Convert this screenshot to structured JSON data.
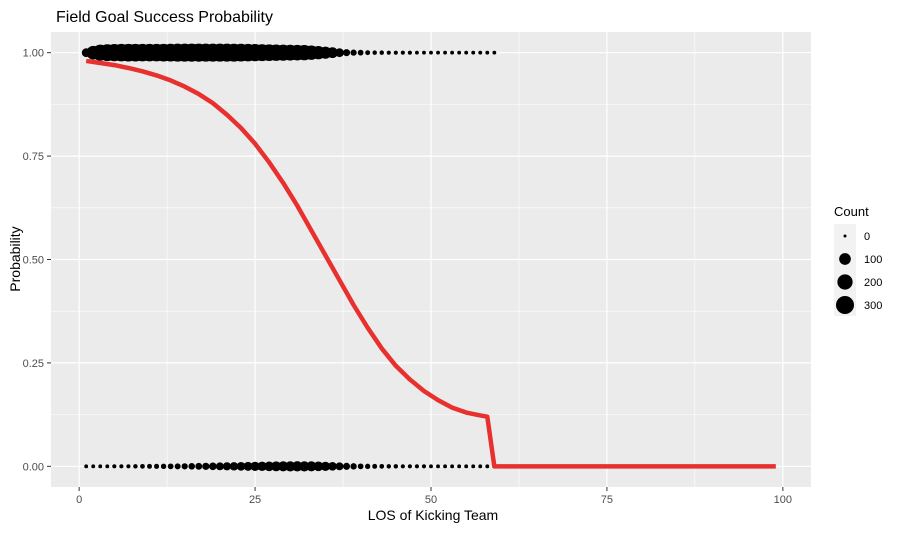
{
  "chart_data": {
    "type": "scatter",
    "title": "Field Goal Success Probability",
    "xlabel": "LOS of Kicking Team",
    "ylabel": "Probability",
    "xlim": [
      -4,
      104
    ],
    "ylim": [
      -0.05,
      1.05
    ],
    "x_ticks": [
      0,
      25,
      50,
      75,
      100
    ],
    "x_tick_labels": [
      "0",
      "25",
      "50",
      "75",
      "100"
    ],
    "y_ticks": [
      0,
      0.25,
      0.5,
      0.75,
      1.0
    ],
    "y_tick_labels": [
      "0.00",
      "0.25",
      "0.50",
      "0.75",
      "1.00"
    ],
    "grid": true,
    "legend": {
      "title": "Count",
      "position": "right",
      "entries": [
        {
          "label": "0",
          "value": 0
        },
        {
          "label": "100",
          "value": 100
        },
        {
          "label": "200",
          "value": 200
        },
        {
          "label": "300",
          "value": 300
        }
      ]
    },
    "colors": {
      "panel": "#EBEBEB",
      "grid_major": "#FFFFFF",
      "points": "#000000",
      "curve": "#E8302F"
    },
    "points_success": {
      "y": 1,
      "x": [
        1,
        2,
        3,
        4,
        5,
        6,
        7,
        8,
        9,
        10,
        11,
        12,
        13,
        14,
        15,
        16,
        17,
        18,
        19,
        20,
        21,
        22,
        23,
        24,
        25,
        26,
        27,
        28,
        29,
        30,
        31,
        32,
        33,
        34,
        35,
        36,
        37,
        38,
        39,
        40,
        41,
        42,
        43,
        44,
        45,
        46,
        47,
        48,
        49,
        50,
        51,
        52,
        53,
        54,
        55,
        56,
        57,
        58,
        59
      ],
      "counts": [
        45,
        150,
        230,
        260,
        270,
        280,
        285,
        285,
        280,
        280,
        280,
        285,
        290,
        300,
        300,
        305,
        305,
        300,
        300,
        300,
        300,
        295,
        290,
        280,
        270,
        260,
        250,
        240,
        230,
        220,
        210,
        200,
        170,
        140,
        110,
        80,
        45,
        22,
        14,
        10,
        5,
        3,
        3,
        2,
        2,
        2,
        2,
        1,
        1,
        1,
        1,
        1,
        1,
        1,
        1,
        1,
        1,
        1,
        1
      ]
    },
    "points_fail": {
      "y": 0,
      "x": [
        1,
        2,
        3,
        4,
        5,
        6,
        7,
        8,
        9,
        10,
        11,
        12,
        13,
        14,
        15,
        16,
        17,
        18,
        19,
        20,
        21,
        22,
        23,
        24,
        25,
        26,
        27,
        28,
        29,
        30,
        31,
        32,
        33,
        34,
        35,
        36,
        37,
        38,
        39,
        40,
        41,
        42,
        43,
        44,
        45,
        46,
        47,
        48,
        49,
        50,
        51,
        52,
        53,
        54,
        55,
        56,
        57,
        58,
        59
      ],
      "counts": [
        1,
        1,
        1,
        1,
        2,
        2,
        2,
        3,
        4,
        5,
        6,
        8,
        10,
        12,
        14,
        17,
        20,
        24,
        28,
        32,
        36,
        40,
        44,
        48,
        52,
        56,
        60,
        64,
        68,
        70,
        72,
        70,
        66,
        60,
        52,
        42,
        32,
        22,
        15,
        10,
        7,
        5,
        4,
        3,
        3,
        2,
        2,
        2,
        2,
        1,
        1,
        1,
        1,
        1,
        1,
        1,
        1,
        1,
        1
      ]
    },
    "curve": {
      "name": "",
      "x": [
        1,
        3,
        5,
        7,
        9,
        11,
        13,
        15,
        17,
        19,
        21,
        23,
        25,
        27,
        29,
        31,
        33,
        35,
        37,
        39,
        41,
        43,
        45,
        47,
        49,
        51,
        53,
        55,
        57,
        58,
        59,
        60,
        65,
        70,
        75,
        80,
        85,
        90,
        95,
        99
      ],
      "y": [
        0.98,
        0.975,
        0.97,
        0.963,
        0.955,
        0.945,
        0.933,
        0.918,
        0.9,
        0.878,
        0.85,
        0.818,
        0.78,
        0.735,
        0.685,
        0.63,
        0.57,
        0.51,
        0.45,
        0.39,
        0.335,
        0.285,
        0.243,
        0.21,
        0.182,
        0.16,
        0.142,
        0.13,
        0.123,
        0.12,
        0.0,
        0.0,
        0.0,
        0.0,
        0.0,
        0.0,
        0.0,
        0.0,
        0.0,
        0.0
      ]
    }
  }
}
